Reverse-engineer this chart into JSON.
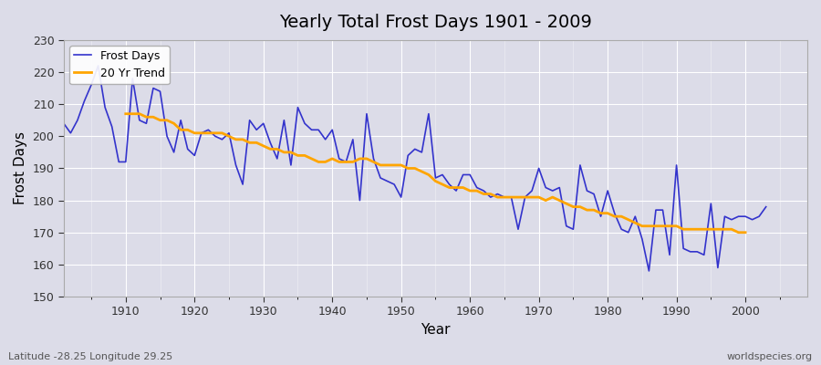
{
  "title": "Yearly Total Frost Days 1901 - 2009",
  "xlabel": "Year",
  "ylabel": "Frost Days",
  "bottom_left_label": "Latitude -28.25 Longitude 29.25",
  "bottom_right_label": "worldspecies.org",
  "ylim": [
    150,
    230
  ],
  "xlim": [
    1901,
    2009
  ],
  "yticks": [
    150,
    160,
    170,
    180,
    190,
    200,
    210,
    220,
    230
  ],
  "xticks": [
    1910,
    1920,
    1930,
    1940,
    1950,
    1960,
    1970,
    1980,
    1990,
    2000
  ],
  "line_color": "#3333cc",
  "trend_color": "#ffa500",
  "plot_bg_color": "#dcdce8",
  "legend_entries": [
    "Frost Days",
    "20 Yr Trend"
  ],
  "frost_days": [
    204,
    201,
    205,
    211,
    216,
    222,
    209,
    203,
    192,
    192,
    218,
    205,
    204,
    215,
    214,
    200,
    195,
    205,
    196,
    194,
    201,
    202,
    200,
    199,
    201,
    191,
    185,
    205,
    202,
    204,
    198,
    193,
    205,
    191,
    209,
    204,
    202,
    202,
    199,
    202,
    193,
    192,
    199,
    180,
    207,
    193,
    187,
    186,
    185,
    181,
    194,
    196,
    195,
    207,
    187,
    188,
    185,
    183,
    188,
    188,
    184,
    183,
    181,
    182,
    181,
    181,
    171,
    181,
    183,
    190,
    184,
    183,
    184,
    172,
    171,
    191,
    183,
    182,
    175,
    183,
    176,
    171,
    170,
    175,
    168,
    158,
    177,
    177,
    163,
    191,
    165,
    164,
    164,
    163,
    179,
    159,
    175,
    174,
    175,
    175,
    174,
    175,
    178
  ],
  "trend_values": [
    207,
    207,
    207,
    206,
    206,
    205,
    205,
    204,
    202,
    202,
    201,
    201,
    201,
    201,
    201,
    200,
    199,
    199,
    198,
    198,
    197,
    196,
    196,
    195,
    195,
    194,
    194,
    193,
    192,
    192,
    193,
    192,
    192,
    192,
    193,
    193,
    192,
    191,
    191,
    191,
    191,
    190,
    190,
    189,
    188,
    186,
    185,
    184,
    184,
    184,
    183,
    183,
    182,
    182,
    181,
    181,
    181,
    181,
    181,
    181,
    181,
    180,
    181,
    180,
    179,
    178,
    178,
    177,
    177,
    176,
    176,
    175,
    175,
    174,
    173,
    172,
    172,
    172,
    172,
    172,
    172,
    171,
    171,
    171,
    171,
    171,
    171,
    171,
    171,
    170,
    170
  ]
}
